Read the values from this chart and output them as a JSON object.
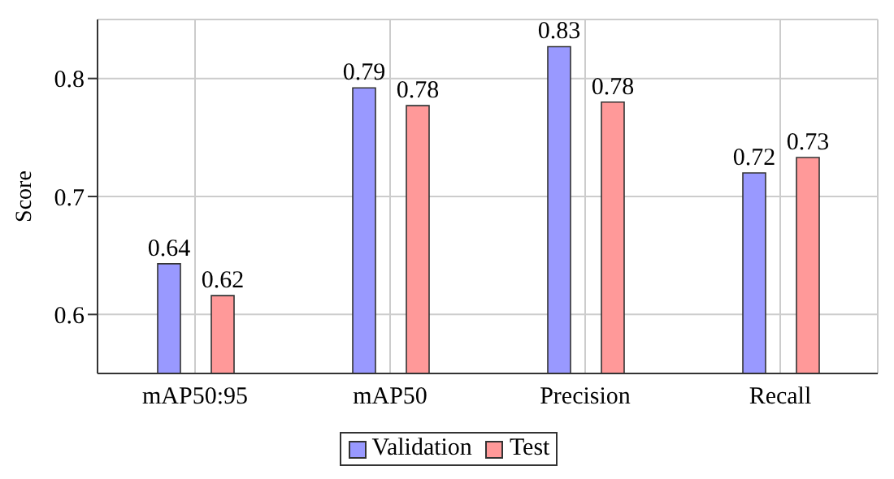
{
  "chart_data": {
    "type": "bar",
    "ylabel": "Score",
    "categories": [
      "mAP50:95",
      "mAP50",
      "Precision",
      "Recall"
    ],
    "series": [
      {
        "name": "Validation",
        "color": "#9999ff",
        "values": [
          0.643,
          0.792,
          0.827,
          0.72
        ],
        "value_labels": [
          "0.64",
          "0.79",
          "0.83",
          "0.72"
        ]
      },
      {
        "name": "Test",
        "color": "#ff9999",
        "values": [
          0.616,
          0.777,
          0.78,
          0.733
        ],
        "value_labels": [
          "0.62",
          "0.78",
          "0.78",
          "0.73"
        ]
      }
    ],
    "ylim": [
      0.55,
      0.85
    ],
    "yticks": [
      0.6,
      0.7,
      0.8
    ],
    "grid": true,
    "legend": "bottom"
  }
}
